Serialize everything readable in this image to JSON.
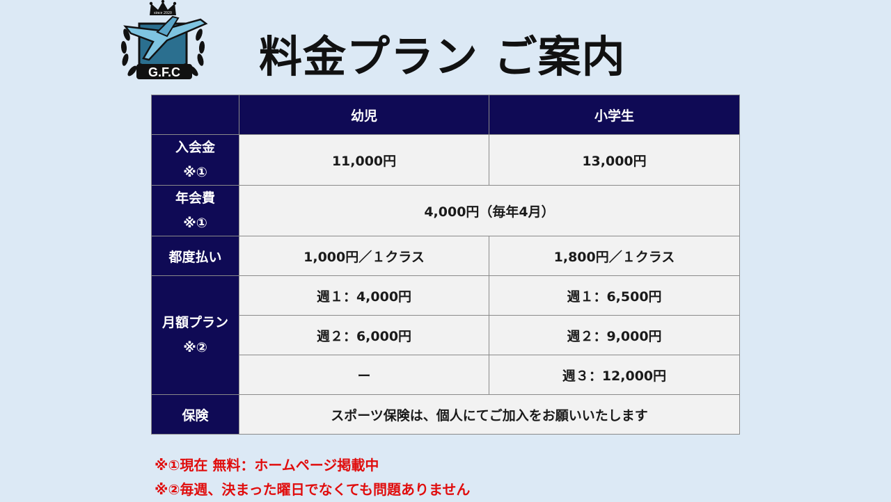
{
  "logo": {
    "top_text": "since 2020",
    "badge_text": "G.F.C"
  },
  "title": "料金プラン ご案内",
  "table": {
    "columns": [
      "",
      "幼児",
      "小学生"
    ],
    "rows": {
      "admission": {
        "label_line1": "入会金",
        "label_line2": "※①",
        "infant": "11,000円",
        "elementary": "13,000円"
      },
      "annual": {
        "label_line1": "年会費",
        "label_line2": "※①",
        "value": "4,000円（毎年4月）"
      },
      "per_visit": {
        "label": "都度払い",
        "infant": "1,000円／１クラス",
        "elementary": "1,800円／１クラス"
      },
      "monthly": {
        "label_line1": "月額プラン",
        "label_line2": "※②",
        "plans": [
          {
            "infant": "週１：4,000円",
            "elementary": "週１：6,500円"
          },
          {
            "infant": "週２：6,000円",
            "elementary": "週２：9,000円"
          },
          {
            "infant": "ー",
            "elementary": "週３：12,000円"
          }
        ]
      },
      "insurance": {
        "label": "保険",
        "value": "スポーツ保険は、個人にてご加入をお願いいたします"
      }
    }
  },
  "notes": [
    "※①現在 無料：ホームページ掲載中",
    "※②毎週、決まった曜日でなくても問題ありません"
  ],
  "colors": {
    "background": "#dce9f5",
    "header_navy": "#0f0a55",
    "cell_gray": "#f2f2f2",
    "note_red": "#e00d0d"
  }
}
